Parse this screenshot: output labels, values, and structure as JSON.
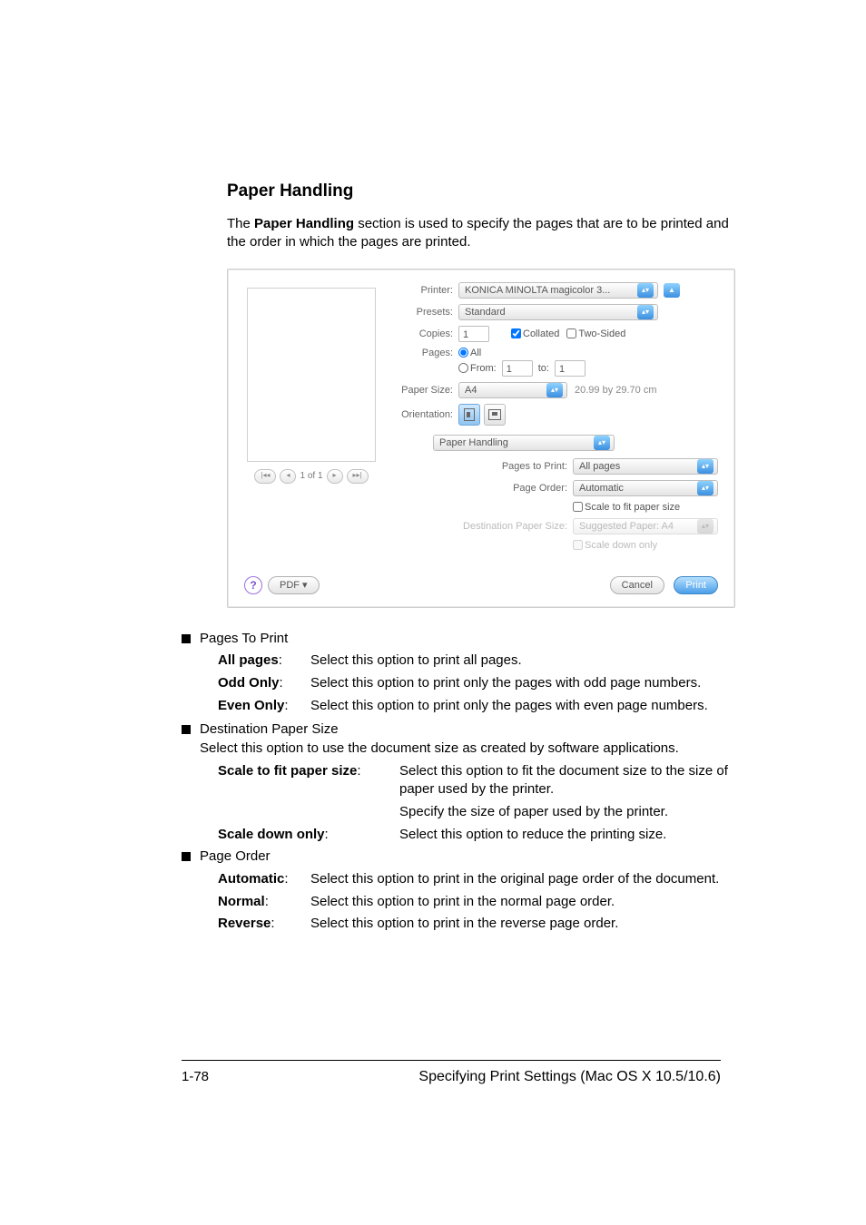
{
  "title": "Paper Handling",
  "intro_html": "The <b>Paper Handling</b> section is used to specify the pages that are to be printed and the order in which the pages are printed.",
  "dialog": {
    "printer_label": "Printer:",
    "printer_value": "KONICA MINOLTA magicolor 3...",
    "presets_label": "Presets:",
    "presets_value": "Standard",
    "copies_label": "Copies:",
    "copies_value": "1",
    "collated_label": "Collated",
    "twosided_label": "Two-Sided",
    "pages_label": "Pages:",
    "pages_all": "All",
    "pages_from_label": "From:",
    "pages_from_value": "1",
    "pages_to_label": "to:",
    "pages_to_value": "1",
    "papersize_label": "Paper Size:",
    "papersize_value": "A4",
    "papersize_dim": "20.99 by 29.70 cm",
    "orientation_label": "Orientation:",
    "panel_selector": "Paper Handling",
    "pages_to_print_label": "Pages to Print:",
    "pages_to_print_value": "All pages",
    "page_order_label": "Page Order:",
    "page_order_value": "Automatic",
    "scale_fit_label": "Scale to fit paper size",
    "dest_size_label": "Destination Paper Size:",
    "dest_size_value": "Suggested Paper: A4",
    "scale_down_label": "Scale down only",
    "preview_counter": "1 of 1",
    "help_glyph": "?",
    "pdf_btn": "PDF ▾",
    "cancel_btn": "Cancel",
    "print_btn": "Print"
  },
  "sections": {
    "pages_to_print": {
      "heading": "Pages To Print",
      "items": [
        {
          "term": "All pages",
          "def": "Select this option to print all pages."
        },
        {
          "term": "Odd Only",
          "def": "Select this option to print only the pages with odd page numbers."
        },
        {
          "term": "Even Only",
          "def": "Select this option to print only the pages with even page numbers."
        }
      ]
    },
    "dest_paper_size": {
      "heading": "Destination Paper Size",
      "para": "Select this option to use the document size as created by software applications.",
      "items": [
        {
          "term": "Scale to fit paper size",
          "def": "Select this option to fit the document size to the size of paper used by the printer."
        },
        {
          "term": "",
          "def": "Specify the size of paper used by the printer."
        },
        {
          "term": "Scale down only",
          "def": "Select this option to reduce the printing size."
        }
      ]
    },
    "page_order": {
      "heading": "Page Order",
      "items": [
        {
          "term": "Automatic",
          "def": "Select this option to print in the original page order of the document."
        },
        {
          "term": "Normal",
          "def": "Select this option to print in the normal page order."
        },
        {
          "term": "Reverse",
          "def": "Select this option to print in the reverse page order."
        }
      ]
    }
  },
  "footer": {
    "page_num": "1-78",
    "running": "Specifying Print Settings (Mac OS X 10.5/10.6)"
  },
  "colors": {
    "aqua_blue": "#4a9ee8",
    "text_gray": "#666666"
  }
}
